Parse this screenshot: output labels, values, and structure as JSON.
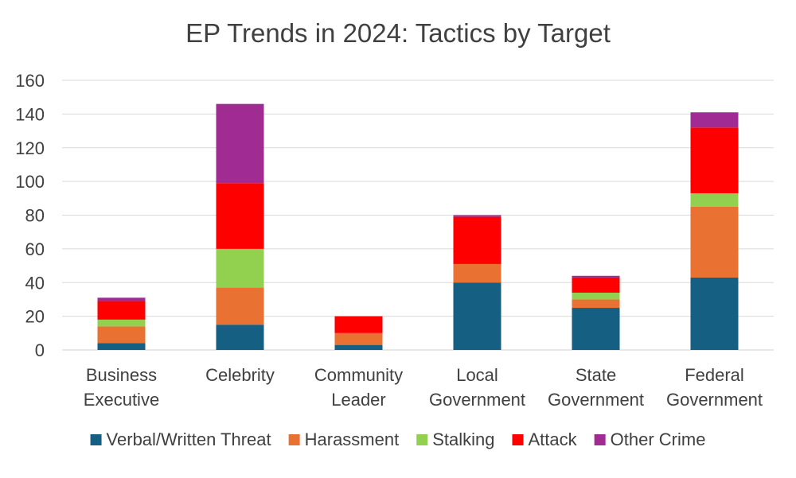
{
  "chart_data": {
    "type": "bar",
    "stacked": true,
    "title": "EP Trends in 2024: Tactics by Target",
    "xlabel": "",
    "ylabel": "",
    "ylim": [
      0,
      160
    ],
    "yticks": [
      0,
      20,
      40,
      60,
      80,
      100,
      120,
      140,
      160
    ],
    "grid": "horizontal",
    "legend_position": "bottom",
    "categories": [
      [
        "Business",
        "Executive"
      ],
      [
        "Celebrity"
      ],
      [
        "Community",
        "Leader"
      ],
      [
        "Local",
        "Government"
      ],
      [
        "State",
        "Government"
      ],
      [
        "Federal",
        "Government"
      ]
    ],
    "series": [
      {
        "name": "Verbal/Written Threat",
        "color": "#156082",
        "values": [
          4,
          15,
          3,
          40,
          25,
          43
        ]
      },
      {
        "name": "Harassment",
        "color": "#E97132",
        "values": [
          10,
          22,
          7,
          11,
          5,
          42
        ]
      },
      {
        "name": "Stalking",
        "color": "#92D050",
        "values": [
          4,
          23,
          0,
          0,
          4,
          8
        ]
      },
      {
        "name": "Attack",
        "color": "#FF0000",
        "values": [
          11,
          39,
          10,
          28,
          9,
          39
        ]
      },
      {
        "name": "Other Crime",
        "color": "#A02B93",
        "values": [
          2,
          47,
          0,
          1,
          1,
          9
        ]
      }
    ]
  }
}
